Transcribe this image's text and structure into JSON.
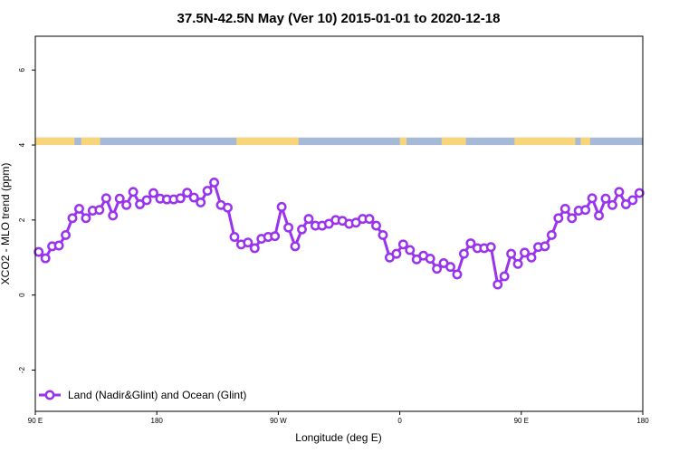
{
  "chart_data": {
    "type": "line",
    "title": "37.5N-42.5N May (Ver 10)   2015-01-01 to 2020-12-18",
    "xlabel": "Longitude (deg E)",
    "ylabel": "XCO2 - MLO trend (ppm)",
    "x_tick_labels": [
      "90 E",
      "180",
      "90 W",
      "0",
      "90 E",
      "180"
    ],
    "x_tick_values": [
      90,
      180,
      270,
      360,
      450,
      540
    ],
    "xlim": [
      90,
      540
    ],
    "y_tick_labels": [
      "-2",
      "0",
      "2",
      "4",
      "6"
    ],
    "y_tick_values": [
      -2,
      0,
      2,
      4,
      6
    ],
    "ylim": [
      -3.1,
      6.9
    ],
    "grid": false,
    "legend_position": "bottom-left",
    "land_sea_strip": {
      "y_range": [
        4.0,
        4.2
      ],
      "land_color": "#F7D57A",
      "ocean_color": "#A6B9D7",
      "land_spans_x": [
        [
          90,
          119
        ],
        [
          124,
          138
        ],
        [
          239,
          285
        ],
        [
          360,
          365
        ],
        [
          391,
          409
        ],
        [
          445,
          490
        ],
        [
          494,
          501
        ]
      ]
    },
    "series": [
      {
        "name": "Land (Nadir&Glint) and Ocean (Glint)",
        "color": "#9933EE",
        "x": [
          92.5,
          97.5,
          102.5,
          107.5,
          112.5,
          117.5,
          122.5,
          127.5,
          132.5,
          137.5,
          142.5,
          147.5,
          152.5,
          157.5,
          162.5,
          167.5,
          172.5,
          177.5,
          182.5,
          187.5,
          192.5,
          197.5,
          202.5,
          207.5,
          212.5,
          217.5,
          222.5,
          227.5,
          232.5,
          237.5,
          242.5,
          247.5,
          252.5,
          257.5,
          262.5,
          267.5,
          272.5,
          277.5,
          282.5,
          287.5,
          292.5,
          297.5,
          302.5,
          307.5,
          312.5,
          317.5,
          322.5,
          327.5,
          332.5,
          337.5,
          342.5,
          347.5,
          352.5,
          357.5,
          362.5,
          367.5,
          372.5,
          377.5,
          382.5,
          387.5,
          392.5,
          397.5,
          402.5,
          407.5,
          412.5,
          417.5,
          422.5,
          427.5,
          432.5,
          437.5,
          442.5,
          447.5,
          452.5,
          457.5,
          462.5,
          467.5,
          472.5,
          477.5,
          482.5,
          487.5,
          492.5,
          497.5,
          502.5,
          507.5,
          512.5,
          517.5,
          522.5,
          527.5,
          532.5,
          537.5
        ],
        "y": [
          1.15,
          0.98,
          1.3,
          1.32,
          1.6,
          2.05,
          2.3,
          2.05,
          2.25,
          2.27,
          2.58,
          2.12,
          2.57,
          2.4,
          2.75,
          2.42,
          2.53,
          2.72,
          2.57,
          2.55,
          2.55,
          2.58,
          2.73,
          2.6,
          2.47,
          2.78,
          3.0,
          2.4,
          2.33,
          1.55,
          1.35,
          1.4,
          1.25,
          1.5,
          1.55,
          1.57,
          2.35,
          1.8,
          1.3,
          1.75,
          2.03,
          1.85,
          1.85,
          1.9,
          2.0,
          1.98,
          1.9,
          1.93,
          2.03,
          2.03,
          1.85,
          1.6,
          1.0,
          1.1,
          1.35,
          1.2,
          0.95,
          1.05,
          0.97,
          0.7,
          0.85,
          0.75,
          0.55,
          1.1,
          1.38,
          1.25,
          1.25,
          1.28,
          0.28,
          0.5,
          1.1,
          0.83,
          1.13,
          1.0,
          1.28,
          1.3,
          1.6,
          2.05,
          2.3,
          2.05,
          2.25,
          2.27,
          2.58,
          2.12,
          2.57,
          2.4,
          2.75,
          2.42,
          2.53,
          2.72
        ]
      }
    ]
  }
}
